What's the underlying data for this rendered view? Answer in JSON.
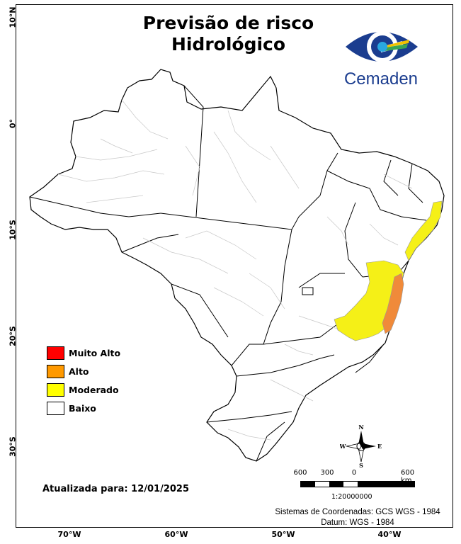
{
  "map": {
    "title_line1": "Previsão de risco",
    "title_line2": "Hidrológico",
    "logo_text": "Cemaden",
    "legend": [
      {
        "label": "Muito Alto",
        "color": "#ff0000"
      },
      {
        "label": "Alto",
        "color": "#ff9900"
      },
      {
        "label": "Moderado",
        "color": "#ffff00"
      },
      {
        "label": "Baixo",
        "color": "#ffffff"
      }
    ],
    "updated": "Atualizada para: 12/01/2025",
    "scale": {
      "labels": [
        "600",
        "300",
        "0",
        "600 km"
      ],
      "ratio": "1:20000000"
    },
    "crs_line1": "Sistemas de Coordenadas: GCS WGS - 1984",
    "crs_line2": "Datum: WGS - 1984",
    "lat_ticks": [
      "10°N",
      "0°",
      "10°S",
      "20°S",
      "30°S"
    ],
    "lon_ticks": [
      "70°W",
      "60°W",
      "50°W",
      "40°W"
    ],
    "compass": {
      "n": "N",
      "s": "S",
      "e": "E",
      "w": "W"
    },
    "colors": {
      "moderado": "#ffff00",
      "alto": "#ff9900",
      "muito_alto": "#ff0000",
      "alto_map": "#f08a3a",
      "moderado_map": "#f5f017"
    }
  }
}
